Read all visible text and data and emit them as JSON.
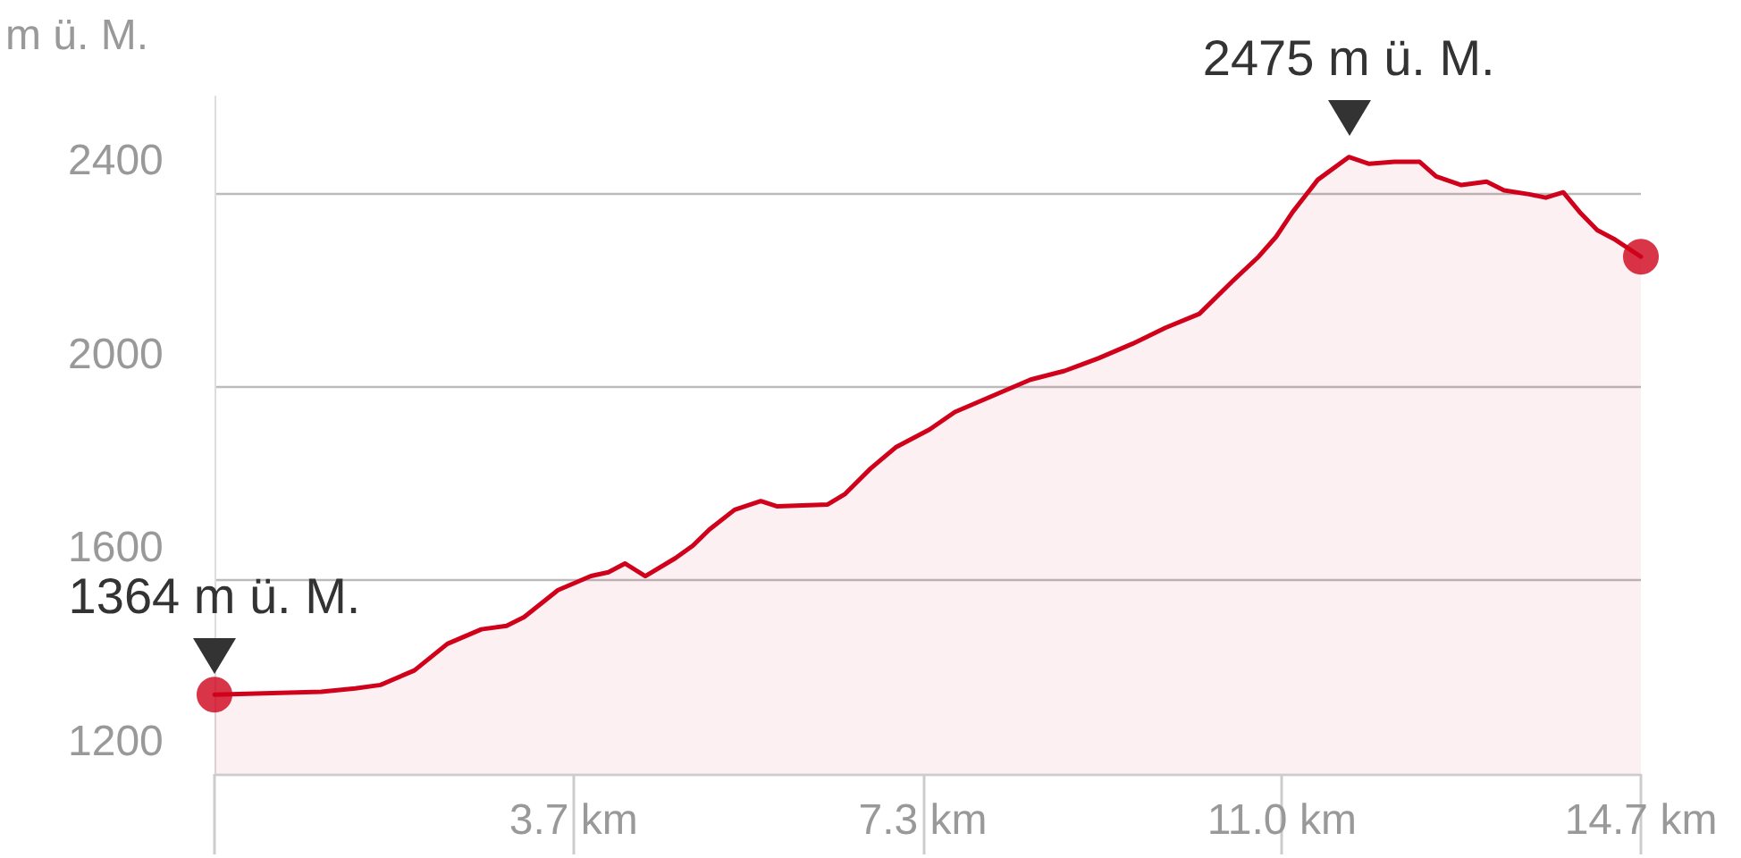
{
  "chart_data": {
    "type": "area",
    "ylabel": "m ü. M.",
    "x": [
      0,
      1.1,
      1.45,
      1.71,
      2.06,
      2.4,
      2.75,
      3.01,
      3.19,
      3.54,
      3.88,
      4.06,
      4.23,
      4.44,
      4.75,
      4.93,
      5.1,
      5.36,
      5.63,
      5.8,
      6.32,
      6.5,
      6.76,
      7.02,
      7.37,
      7.63,
      8.06,
      8.41,
      8.76,
      9.11,
      9.46,
      9.8,
      10.15,
      10.49,
      10.76,
      10.94,
      11.11,
      11.37,
      11.69,
      11.9,
      12.16,
      12.42,
      12.59,
      12.85,
      13.11,
      13.29,
      13.55,
      13.72,
      13.9,
      14.07,
      14.25,
      14.42,
      14.7
    ],
    "series": [
      {
        "color": "#d0021b",
        "values": [
          1364,
          1370,
          1377,
          1384,
          1414,
          1469,
          1499,
          1506,
          1524,
          1580,
          1609,
          1617,
          1635,
          1609,
          1646,
          1672,
          1705,
          1746,
          1764,
          1753,
          1757,
          1779,
          1831,
          1875,
          1912,
          1948,
          1985,
          2015,
          2033,
          2059,
          2089,
          2122,
          2151,
          2218,
          2269,
          2310,
          2361,
          2428,
          2475,
          2461,
          2465,
          2465,
          2435,
          2417,
          2424,
          2406,
          2398,
          2391,
          2402,
          2361,
          2324,
          2306,
          2269
        ]
      },
      {
        "type": "scatter",
        "color": "#d0021b",
        "marker": "circle",
        "x": [
          0,
          14.7
        ],
        "values": [
          1364,
          2269
        ]
      }
    ],
    "xlim": [
      0,
      14.7
    ],
    "xticks": [
      {
        "value": 0,
        "label": null
      },
      {
        "value": 3.7,
        "label": "3.7 km"
      },
      {
        "value": 7.3,
        "label": "7.3 km"
      },
      {
        "value": 11.0,
        "label": "11.0 km"
      },
      {
        "value": 14.7,
        "label": "14.7 km"
      }
    ],
    "ylim": [
      1200,
      2600
    ],
    "yticks": [
      1200,
      1600,
      2000,
      2400
    ],
    "grid": "y",
    "line_style": "solid",
    "annotations": [
      {
        "text": "1364 m ü. M.",
        "x": 0,
        "y": 1364
      },
      {
        "text": "2475 m ü. M.",
        "x": 11.69,
        "y": 2475
      }
    ]
  }
}
